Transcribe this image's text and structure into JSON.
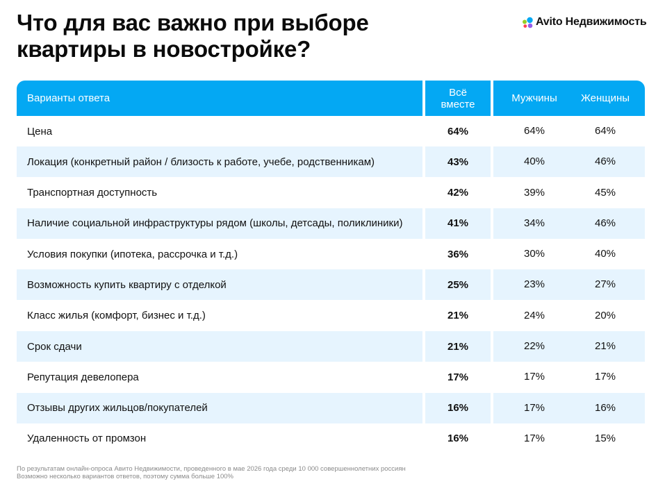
{
  "title": {
    "line1": "Что для вас важно при выборе",
    "line2": "квартиры в новостройке?"
  },
  "logo": {
    "text": "Avito Недвижимость",
    "icon": "avito-dots-icon",
    "colors": [
      "#04a8f3",
      "#97cf26",
      "#ff4053",
      "#965eeb"
    ]
  },
  "colors": {
    "header": "#04a8f3",
    "stripe": "#e6f4fe"
  },
  "chart_data": {
    "type": "table",
    "columns": [
      "Варианты ответа",
      "Всё вместе",
      "Мужчины",
      "Женщины"
    ],
    "rows": [
      {
        "label": "Цена",
        "all": "64%",
        "men": "64%",
        "women": "64%"
      },
      {
        "label": "Локация (конкретный район / близость к работе, учебе, родственникам)",
        "all": "43%",
        "men": "40%",
        "women": "46%"
      },
      {
        "label": "Транспортная доступность",
        "all": "42%",
        "men": "39%",
        "women": "45%"
      },
      {
        "label": "Наличие социальной инфраструктуры рядом (школы, детсады, поликлиники)",
        "all": "41%",
        "men": "34%",
        "women": "46%"
      },
      {
        "label": "Условия покупки (ипотека, рассрочка и т.д.)",
        "all": "36%",
        "men": "30%",
        "women": "40%"
      },
      {
        "label": "Возможность купить квартиру с отделкой",
        "all": "25%",
        "men": "23%",
        "women": "27%"
      },
      {
        "label": "Класс жилья (комфорт, бизнес и т.д.)",
        "all": "21%",
        "men": "24%",
        "women": "20%"
      },
      {
        "label": "Срок сдачи",
        "all": "21%",
        "men": "22%",
        "women": "21%"
      },
      {
        "label": "Репутация девелопера",
        "all": "17%",
        "men": "17%",
        "women": "17%"
      },
      {
        "label": "Отзывы других жильцов/покупателей",
        "all": "16%",
        "men": "17%",
        "women": "16%"
      },
      {
        "label": "Удаленность от промзон",
        "all": "16%",
        "men": "17%",
        "women": "15%"
      }
    ]
  },
  "header": {
    "all_line1": "Всё",
    "all_line2": "вместе"
  },
  "footnote": {
    "line1": "По результатам онлайн-опроса Авито Недвижимости, проведенного в мае 2026 года среди 10 000 совершеннолетних россиян",
    "line2": "Возможно несколько вариантов ответов, поэтому сумма больше 100%"
  }
}
